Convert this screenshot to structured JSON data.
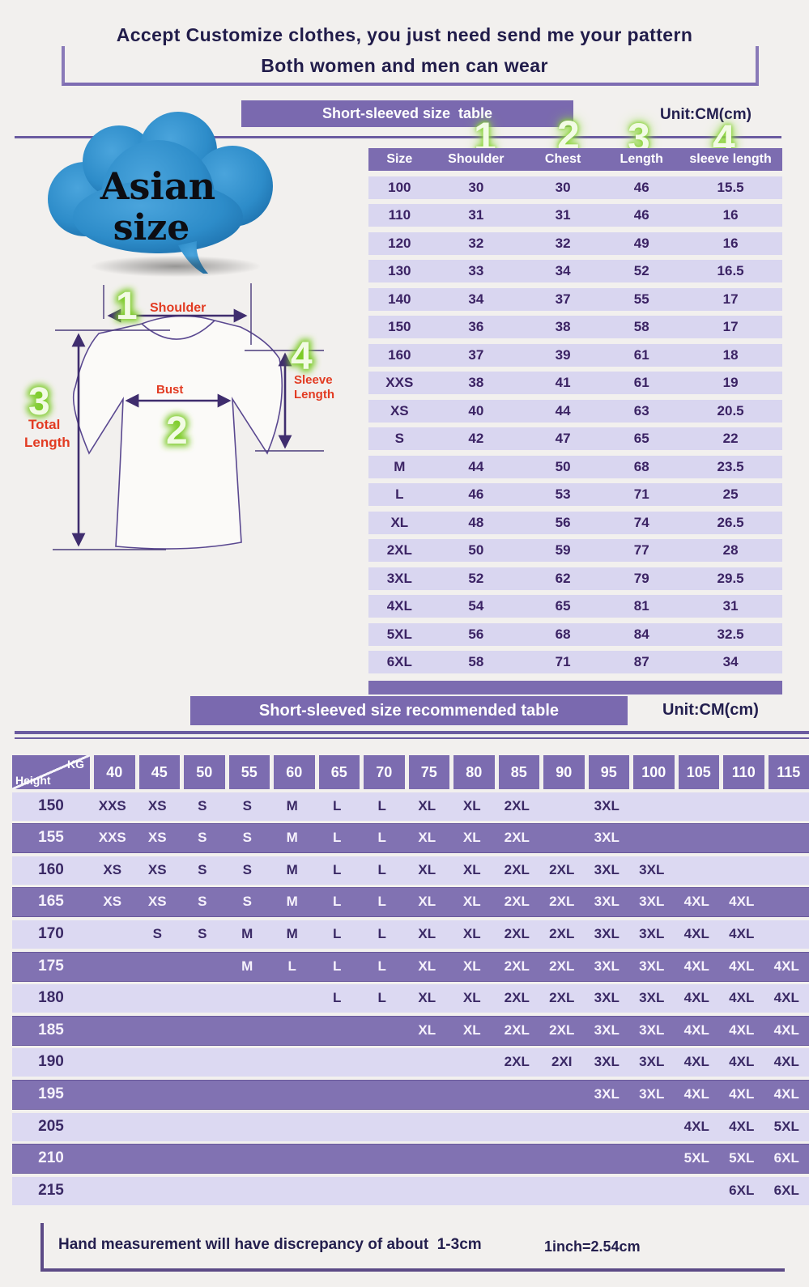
{
  "colors": {
    "accent_purple": "#7c6cb0",
    "row_lavender": "#d9d6f0",
    "dark_row_purple": "#8172b2",
    "line_purple": "#6b5ba0",
    "text_navy": "#231f4f",
    "text_purple": "#3b2a66",
    "label_red": "#e23b22",
    "marker_green": "#8fd83e",
    "cloud_blue": "#2d8cc9",
    "background": "#f2f0ee"
  },
  "header": {
    "title_line1": "Accept Customize clothes, you just need send me your pattern",
    "title_line2": "Both women and men can wear"
  },
  "cloud": {
    "line1": "Asian",
    "line2": "size"
  },
  "size_table": {
    "banner": "Short-sleeved size  table",
    "unit": "Unit:CM(cm)",
    "markers": [
      "1",
      "2",
      "3",
      "4"
    ],
    "columns": [
      "Size",
      "Shoulder",
      "Chest",
      "Length",
      "sleeve length"
    ],
    "rows": [
      [
        "100",
        "30",
        "30",
        "46",
        "15.5"
      ],
      [
        "110",
        "31",
        "31",
        "46",
        "16"
      ],
      [
        "120",
        "32",
        "32",
        "49",
        "16"
      ],
      [
        "130",
        "33",
        "34",
        "52",
        "16.5"
      ],
      [
        "140",
        "34",
        "37",
        "55",
        "17"
      ],
      [
        "150",
        "36",
        "38",
        "58",
        "17"
      ],
      [
        "160",
        "37",
        "39",
        "61",
        "18"
      ],
      [
        "XXS",
        "38",
        "41",
        "61",
        "19"
      ],
      [
        "XS",
        "40",
        "44",
        "63",
        "20.5"
      ],
      [
        "S",
        "42",
        "47",
        "65",
        "22"
      ],
      [
        "M",
        "44",
        "50",
        "68",
        "23.5"
      ],
      [
        "L",
        "46",
        "53",
        "71",
        "25"
      ],
      [
        "XL",
        "48",
        "56",
        "74",
        "26.5"
      ],
      [
        "2XL",
        "50",
        "59",
        "77",
        "28"
      ],
      [
        "3XL",
        "52",
        "62",
        "79",
        "29.5"
      ],
      [
        "4XL",
        "54",
        "65",
        "81",
        "31"
      ],
      [
        "5XL",
        "56",
        "68",
        "84",
        "32.5"
      ],
      [
        "6XL",
        "58",
        "71",
        "87",
        "34"
      ]
    ]
  },
  "diagram": {
    "marker_shoulder": "1",
    "marker_bust": "2",
    "marker_total": "3",
    "marker_sleeve": "4",
    "shoulder": "Shoulder",
    "bust": "Bust",
    "total_line1": "Total",
    "total_line2": "Length",
    "sleeve_line1": "Sleeve",
    "sleeve_line2": "Length"
  },
  "recommend_table": {
    "banner": "Short-sleeved size recommended table",
    "unit": "Unit:CM(cm)",
    "corner_top": "KG",
    "corner_bottom": "Height",
    "weights": [
      "40",
      "45",
      "50",
      "55",
      "60",
      "65",
      "70",
      "75",
      "80",
      "85",
      "90",
      "95",
      "100",
      "105",
      "110",
      "115"
    ],
    "rows": [
      {
        "height": "150",
        "cells": [
          "XXS",
          "XS",
          "S",
          "S",
          "M",
          "L",
          "L",
          "XL",
          "XL",
          "2XL",
          "",
          "3XL",
          "",
          "",
          "",
          ""
        ]
      },
      {
        "height": "155",
        "cells": [
          "XXS",
          "XS",
          "S",
          "S",
          "M",
          "L",
          "L",
          "XL",
          "XL",
          "2XL",
          "",
          "3XL",
          "",
          "",
          "",
          ""
        ]
      },
      {
        "height": "160",
        "cells": [
          "XS",
          "XS",
          "S",
          "S",
          "M",
          "L",
          "L",
          "XL",
          "XL",
          "2XL",
          "2XL",
          "3XL",
          "3XL",
          "",
          "",
          ""
        ]
      },
      {
        "height": "165",
        "cells": [
          "XS",
          "XS",
          "S",
          "S",
          "M",
          "L",
          "L",
          "XL",
          "XL",
          "2XL",
          "2XL",
          "3XL",
          "3XL",
          "4XL",
          "4XL",
          ""
        ]
      },
      {
        "height": "170",
        "cells": [
          "",
          "S",
          "S",
          "M",
          "M",
          "L",
          "L",
          "XL",
          "XL",
          "2XL",
          "2XL",
          "3XL",
          "3XL",
          "4XL",
          "4XL",
          ""
        ]
      },
      {
        "height": "175",
        "cells": [
          "",
          "",
          "",
          "M",
          "L",
          "L",
          "L",
          "XL",
          "XL",
          "2XL",
          "2XL",
          "3XL",
          "3XL",
          "4XL",
          "4XL",
          "4XL"
        ]
      },
      {
        "height": "180",
        "cells": [
          "",
          "",
          "",
          "",
          "",
          "L",
          "L",
          "XL",
          "XL",
          "2XL",
          "2XL",
          "3XL",
          "3XL",
          "4XL",
          "4XL",
          "4XL"
        ]
      },
      {
        "height": "185",
        "cells": [
          "",
          "",
          "",
          "",
          "",
          "",
          "",
          "XL",
          "XL",
          "2XL",
          "2XL",
          "3XL",
          "3XL",
          "4XL",
          "4XL",
          "4XL"
        ]
      },
      {
        "height": "190",
        "cells": [
          "",
          "",
          "",
          "",
          "",
          "",
          "",
          "",
          "",
          "2XL",
          "2XI",
          "3XL",
          "3XL",
          "4XL",
          "4XL",
          "4XL"
        ]
      },
      {
        "height": "195",
        "cells": [
          "",
          "",
          "",
          "",
          "",
          "",
          "",
          "",
          "",
          "",
          "",
          "3XL",
          "3XL",
          "4XL",
          "4XL",
          "4XL"
        ]
      },
      {
        "height": "205",
        "cells": [
          "",
          "",
          "",
          "",
          "",
          "",
          "",
          "",
          "",
          "",
          "",
          "",
          "",
          "4XL",
          "4XL",
          "5XL"
        ]
      },
      {
        "height": "210",
        "cells": [
          "",
          "",
          "",
          "",
          "",
          "",
          "",
          "",
          "",
          "",
          "",
          "",
          "",
          "5XL",
          "5XL",
          "6XL"
        ]
      },
      {
        "height": "215",
        "cells": [
          "",
          "",
          "",
          "",
          "",
          "",
          "",
          "",
          "",
          "",
          "",
          "",
          "",
          "",
          "6XL",
          "6XL"
        ]
      }
    ]
  },
  "footer": {
    "note": "Hand measurement will have discrepancy of about  1-3cm",
    "conversion": "1inch=2.54cm"
  }
}
